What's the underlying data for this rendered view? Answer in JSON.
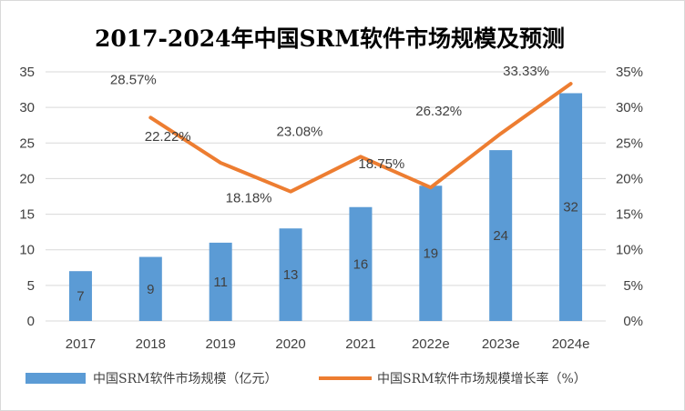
{
  "chart_data": {
    "type": "bar",
    "title": "2017-2024年中国SRM软件市场规模及预测",
    "categories": [
      "2017",
      "2018",
      "2019",
      "2020",
      "2021",
      "2022e",
      "2023e",
      "2024e"
    ],
    "series": [
      {
        "name": "中国SRM软件市场规模（亿元）",
        "type": "bar",
        "axis": "left",
        "values": [
          7,
          9,
          11,
          13,
          16,
          19,
          24,
          32
        ],
        "labels": [
          "7",
          "9",
          "11",
          "13",
          "16",
          "19",
          "24",
          "32"
        ],
        "color": "#5B9BD5"
      },
      {
        "name": "中国SRM软件市场规模增长率（%）",
        "type": "line",
        "axis": "right",
        "values": [
          null,
          28.57,
          22.22,
          18.18,
          23.08,
          18.75,
          26.32,
          33.33
        ],
        "labels": [
          "",
          "28.57%",
          "22.22%",
          "18.18%",
          "23.08%",
          "18.75%",
          "26.32%",
          "33.33%"
        ],
        "color": "#ED7D31"
      }
    ],
    "y_left": {
      "min": 0,
      "max": 35,
      "ticks": [
        "0",
        "5",
        "10",
        "15",
        "20",
        "25",
        "30",
        "35"
      ]
    },
    "y_right": {
      "min": 0,
      "max": 35,
      "ticks": [
        "0%",
        "5%",
        "10%",
        "15%",
        "20%",
        "25%",
        "30%",
        "35%"
      ]
    },
    "grid": true,
    "legend_position": "bottom"
  }
}
